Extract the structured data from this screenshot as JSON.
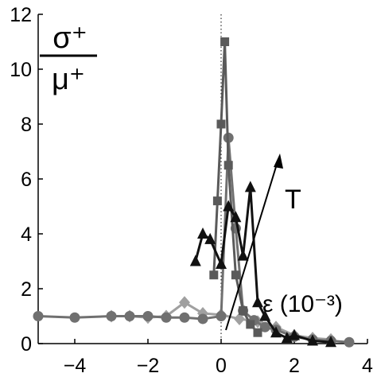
{
  "chart_data": {
    "type": "line",
    "xlim": [
      -5,
      4
    ],
    "ylim": [
      0,
      12
    ],
    "xticks": [
      -4,
      -2,
      0,
      2,
      4
    ],
    "xtick_labels": [
      "−4",
      "−2",
      "0",
      "2",
      "4"
    ],
    "yticks": [
      0,
      2,
      4,
      6,
      8,
      10,
      12
    ],
    "ytick_labels": [
      "0",
      "2",
      "4",
      "6",
      "8",
      "10",
      "12"
    ],
    "grid": false,
    "legend": "none",
    "ylabel_num": "σ⁺",
    "ylabel_den": "μ⁺",
    "annotations": {
      "xlabel_inline": "ε (10⁻³)",
      "arrow_label": "T"
    },
    "reference_line_x": 0,
    "series": [
      {
        "marker": "diamond",
        "color": "#a0a0a0",
        "x": [
          -3.0,
          -2.5,
          -2.0,
          -1.5,
          -1.0,
          -0.5,
          0.0,
          0.5,
          1.0,
          1.5,
          2.0,
          2.5,
          3.0
        ],
        "y": [
          1.0,
          1.0,
          0.95,
          1.0,
          1.5,
          1.1,
          1.05,
          0.9,
          0.8,
          0.6,
          0.3,
          0.2,
          0.15
        ]
      },
      {
        "marker": "circle",
        "color": "#707070",
        "x": [
          -5.0,
          -4.0,
          -3.0,
          -2.5,
          -2.0,
          -1.5,
          -1.0,
          -0.5,
          0.0,
          0.2,
          0.4,
          0.6,
          0.9,
          1.2,
          1.5,
          2.0,
          2.5,
          3.0,
          3.5
        ],
        "y": [
          1.0,
          0.95,
          1.0,
          1.0,
          1.0,
          0.95,
          0.95,
          0.9,
          1.0,
          7.5,
          4.2,
          1.2,
          0.85,
          0.6,
          0.5,
          0.25,
          0.15,
          0.1,
          0.05
        ]
      },
      {
        "marker": "square",
        "color": "#5a5a5a",
        "x": [
          -0.2,
          -0.1,
          0.0,
          0.1,
          0.2,
          0.4,
          0.6,
          0.8,
          1.0
        ],
        "y": [
          2.5,
          5.2,
          8.0,
          11.0,
          6.5,
          2.5,
          1.2,
          0.7,
          0.4
        ]
      },
      {
        "marker": "triangle",
        "color": "#111111",
        "x": [
          -0.7,
          -0.5,
          -0.3,
          0.0,
          0.2,
          0.4,
          0.6,
          0.8,
          1.0,
          1.2,
          1.5,
          1.8,
          2.0,
          2.5,
          3.0
        ],
        "y": [
          3.0,
          4.0,
          3.8,
          2.9,
          5.0,
          4.6,
          3.2,
          5.7,
          1.5,
          1.0,
          0.4,
          0.2,
          0.3,
          0.1,
          0.05
        ]
      }
    ]
  }
}
